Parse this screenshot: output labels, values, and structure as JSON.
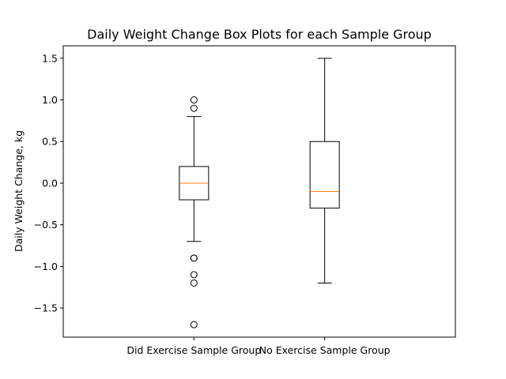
{
  "chart_data": {
    "type": "box",
    "title": "Daily Weight Change Box Plots for each Sample Group",
    "xlabel": "",
    "ylabel": "Daily Weight Change, kg",
    "ylim": [
      -1.85,
      1.65
    ],
    "yticks": [
      1.5,
      1.0,
      0.5,
      0.0,
      -0.5,
      -1.0,
      -1.5
    ],
    "ytick_labels": [
      "1.5",
      "1.0",
      "0.5",
      "0.0",
      "−0.5",
      "−1.0",
      "−1.5"
    ],
    "grid": false,
    "median_color": "#ff7f0e",
    "series": [
      {
        "name": "Did Exercise Sample Group",
        "whisker_low": -0.7,
        "q1": -0.2,
        "median": 0.0,
        "q3": 0.2,
        "whisker_high": 0.8,
        "outliers": [
          1.0,
          0.9,
          -0.9,
          -0.9,
          -1.1,
          -1.2,
          -1.7
        ]
      },
      {
        "name": "No Exercise Sample Group",
        "whisker_low": -1.2,
        "q1": -0.3,
        "median": -0.1,
        "q3": 0.5,
        "whisker_high": 1.5,
        "outliers": []
      }
    ]
  }
}
